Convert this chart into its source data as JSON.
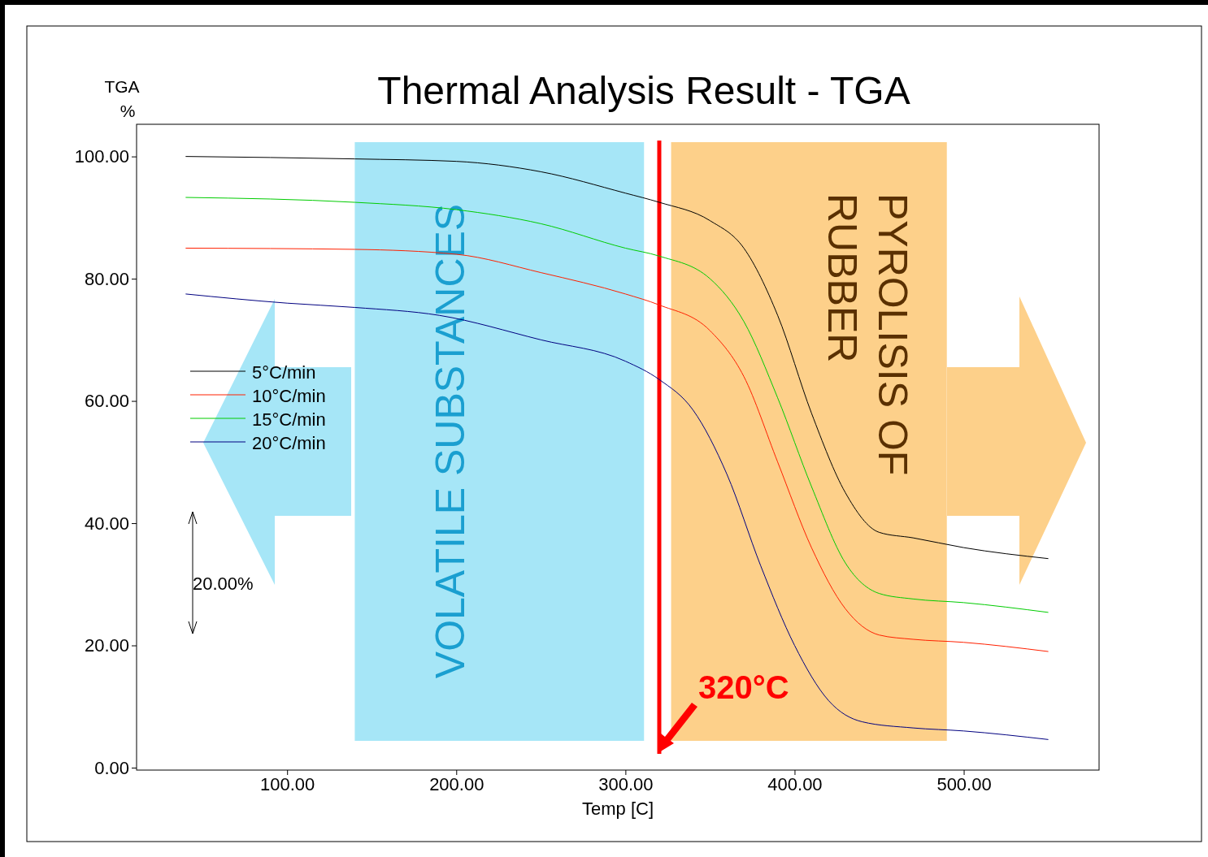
{
  "chart_data": {
    "type": "line",
    "title": "Thermal Analysis Result - TGA",
    "xlabel": "Temp  [C]",
    "ylabel": "TGA %",
    "xlim": [
      11,
      580
    ],
    "xticks": [
      {
        "value": 100,
        "label": "100.00"
      },
      {
        "value": 200,
        "label": "200.00"
      },
      {
        "value": 300,
        "label": "300.00"
      },
      {
        "value": 400,
        "label": "400.00"
      },
      {
        "value": 500,
        "label": "500.00"
      }
    ],
    "ylim": [
      0,
      105
    ],
    "yticks": [
      {
        "value": 0,
        "label": "0.00"
      },
      {
        "value": 20,
        "label": "20.00"
      },
      {
        "value": 40,
        "label": "40.00"
      },
      {
        "value": 60,
        "label": "60.00"
      },
      {
        "value": 80,
        "label": "80.00"
      },
      {
        "value": 100,
        "label": "100.00"
      }
    ],
    "grid": false,
    "legend": "left",
    "marker": "none",
    "line_style": "solid",
    "series": [
      {
        "name": "5°C/min",
        "color": "#000000",
        "x": [
          40,
          140,
          200,
          250,
          300,
          320,
          350,
          370,
          390,
          410,
          430,
          450,
          470,
          500,
          550
        ],
        "values": [
          100,
          99.6,
          99.2,
          97.5,
          94,
          92.5,
          89.5,
          85,
          74,
          58,
          45,
          38.5,
          37.6,
          36,
          34.2
        ]
      },
      {
        "name": "10°C/min",
        "color": "#ff2000",
        "x": [
          40,
          140,
          200,
          250,
          300,
          320,
          350,
          370,
          390,
          410,
          430,
          450,
          470,
          500,
          550
        ],
        "values": [
          85,
          84.8,
          84,
          81,
          77.5,
          75.7,
          71.5,
          64,
          50,
          36,
          26,
          21.7,
          21,
          20.5,
          19
        ]
      },
      {
        "name": "15°C/min",
        "color": "#00cc00",
        "x": [
          40,
          140,
          200,
          250,
          300,
          320,
          350,
          370,
          390,
          410,
          430,
          450,
          470,
          500,
          550
        ],
        "values": [
          93.3,
          92.5,
          91.3,
          89,
          85,
          83.7,
          80,
          73,
          60.5,
          46,
          33.5,
          28.5,
          27.6,
          27,
          25.4
        ]
      },
      {
        "name": "20°C/min",
        "color": "#000080",
        "x": [
          40,
          100,
          140,
          190,
          250,
          300,
          320,
          340,
          360,
          380,
          400,
          420,
          440,
          470,
          500,
          550
        ],
        "values": [
          77.5,
          76,
          75.3,
          74,
          70,
          66.5,
          63.5,
          58.5,
          48,
          33,
          20,
          11,
          7.5,
          6.5,
          6,
          4.6
        ]
      }
    ],
    "bands": [
      {
        "axis": "x",
        "from": 140,
        "to": 311,
        "label": "VOLATILE SUBSTANCES",
        "color": "#a6e6f7"
      },
      {
        "axis": "x",
        "from": 327,
        "to": 490,
        "label": "PYROLISIS OF RUBBER",
        "color": "#fdd08a"
      }
    ],
    "ref_lines": [
      {
        "axis": "x",
        "value": 320,
        "label": "320°C",
        "color": "#ff0000"
      }
    ],
    "annotations": [
      "20.00%"
    ]
  }
}
